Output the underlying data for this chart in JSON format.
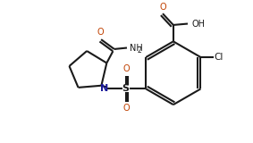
{
  "background": "#ffffff",
  "bond_color": "#1a1a1a",
  "N_color": "#1a1a9a",
  "O_color": "#c04000",
  "fig_width": 2.83,
  "fig_height": 1.6,
  "dpi": 100,
  "xlim": [
    0,
    10
  ],
  "ylim": [
    0,
    5.6
  ]
}
